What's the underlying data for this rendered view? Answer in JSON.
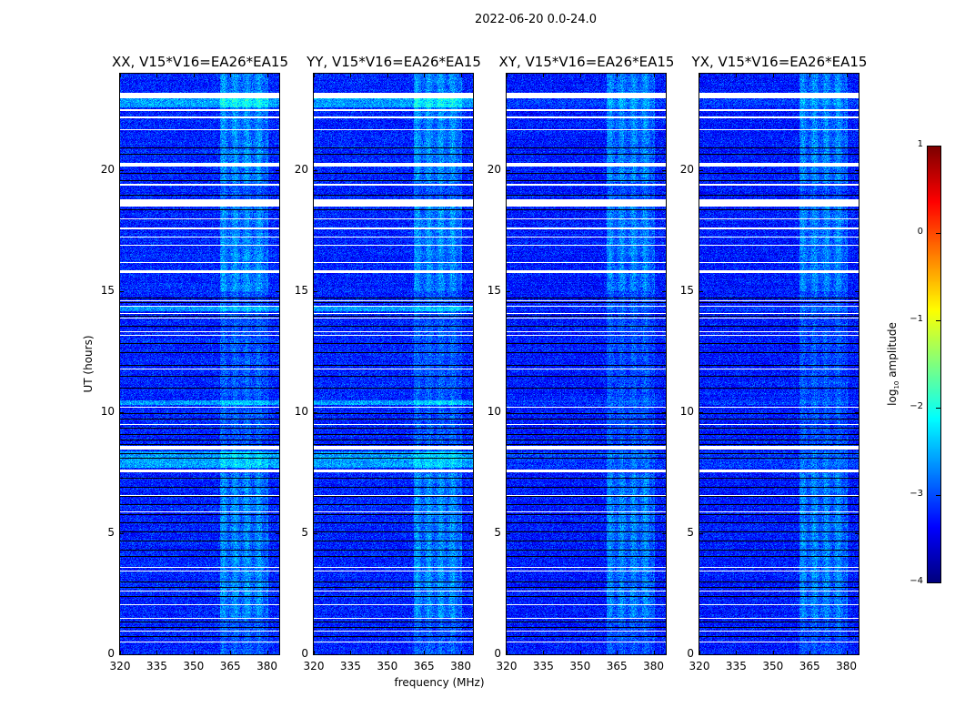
{
  "chart_data": {
    "type": "heatmap",
    "title": "2022-06-20 0.0-24.0",
    "xlabel": "frequency (MHz)",
    "ylabel": "UT (hours)",
    "xlim": [
      320,
      385
    ],
    "ylim": [
      0,
      24
    ],
    "xticks": [
      320,
      335,
      350,
      365,
      380
    ],
    "yticks": [
      0,
      5,
      10,
      15,
      20
    ],
    "colormap": "jet",
    "colorbar": {
      "label": "log10 amplitude",
      "label_main": "log",
      "label_sub": "10",
      "label_rest": " amplitude",
      "range": [
        -4,
        1
      ],
      "ticks": [
        1,
        0,
        -1,
        -2,
        -3,
        -4
      ],
      "tick_labels": [
        "1",
        "0",
        "−1",
        "−2",
        "−3",
        "−4"
      ],
      "placement": "right"
    },
    "panels": [
      {
        "title": "XX, V15*V16=EA26*EA15",
        "background_level": -3.2,
        "bright_rows_boost": 0.6
      },
      {
        "title": "YY, V15*V16=EA26*EA15",
        "background_level": -3.2,
        "bright_rows_boost": 0.6
      },
      {
        "title": "XY, V15*V16=EA26*EA15",
        "background_level": -3.25,
        "bright_rows_boost": 0.15
      },
      {
        "title": "YX, V15*V16=EA26*EA15",
        "background_level": -3.25,
        "bright_rows_boost": 0.15
      }
    ],
    "signal_band_mhz": [
      361,
      380.5
    ],
    "signal_level": -2.3,
    "signal_hours": [
      [
        1.5,
        7.5
      ],
      [
        15.0,
        18.5
      ],
      [
        19.5,
        24.0
      ]
    ],
    "bright_rows_hours": [
      [
        22.6,
        23.0
      ],
      [
        14.2,
        14.4
      ],
      [
        10.3,
        10.5
      ],
      [
        7.7,
        8.4
      ]
    ],
    "flagged_hours": [
      [
        23.0,
        23.2
      ],
      [
        22.45,
        22.52
      ],
      [
        22.17,
        22.23
      ],
      [
        21.67,
        21.72
      ],
      [
        20.18,
        20.3
      ],
      [
        19.38,
        19.43
      ],
      [
        18.5,
        18.8
      ],
      [
        17.98,
        18.03
      ],
      [
        17.58,
        17.63
      ],
      [
        17.23,
        17.28
      ],
      [
        16.88,
        16.92
      ],
      [
        16.18,
        16.23
      ],
      [
        15.75,
        15.86
      ],
      [
        14.58,
        14.62
      ],
      [
        14.38,
        14.42
      ],
      [
        14.08,
        14.12
      ],
      [
        13.88,
        13.92
      ],
      [
        13.33,
        13.37
      ],
      [
        13.18,
        13.22
      ],
      [
        11.78,
        11.82
      ],
      [
        10.18,
        10.22
      ],
      [
        9.48,
        9.52
      ],
      [
        8.48,
        8.6
      ],
      [
        7.53,
        7.65
      ],
      [
        6.53,
        6.57
      ],
      [
        5.88,
        5.92
      ],
      [
        3.58,
        3.62
      ],
      [
        3.43,
        3.47
      ],
      [
        2.58,
        2.62
      ],
      [
        2.03,
        2.07
      ],
      [
        1.48,
        1.52
      ],
      [
        0.93,
        0.97
      ],
      [
        0.48,
        0.52
      ]
    ],
    "zero_rows_hours": [
      20.96,
      20.7,
      19.9,
      19.6,
      19.0,
      18.4,
      14.74,
      14.55,
      14.0,
      13.57,
      12.86,
      12.49,
      11.96,
      11.51,
      11.03,
      9.98,
      9.75,
      9.38,
      9.11,
      8.89,
      8.7,
      8.33,
      8.14,
      7.31,
      6.94,
      6.56,
      6.19,
      5.81,
      5.44,
      5.06,
      4.69,
      4.31,
      4.05,
      3.0,
      2.78,
      2.4,
      1.35,
      1.13,
      0.75
    ]
  }
}
